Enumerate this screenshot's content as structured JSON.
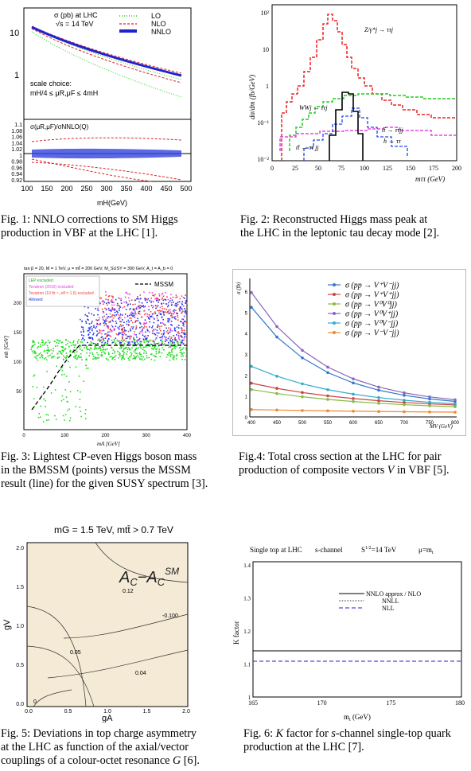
{
  "captions": {
    "fig1": [
      "Fig. 1: NNLO corrections to SM Higgs",
      "production in VBF at the LHC [1]."
    ],
    "fig2": [
      "Fig. 2: Reconstructed Higgs mass peak at",
      "the LHC in the leptonic tau decay mode [2]."
    ],
    "fig3": [
      "Fig. 3: Lightest CP-even Higgs boson mass",
      "in the BMSSM (points) versus the MSSM",
      "result (line) for the given SUSY spectrum [3]."
    ],
    "fig4": [
      "Fig.4: Total cross section at the LHC for pair",
      "production of composite vectors V in VBF [5]."
    ],
    "fig5": [
      "Fig. 5: Deviations in top charge asymmetry",
      "at the LHC as function of the axial/vector",
      "couplings of a colour-octet resonance G [6]."
    ],
    "fig6": [
      "Fig. 6: K factor for s-channel single-top quark",
      "production at the LHC [7]."
    ]
  },
  "fig1": {
    "legend": [
      "σ (pb) at LHC",
      "√s = 14 TeV"
    ],
    "series_names": [
      "LO",
      "NLO",
      "NNLO"
    ],
    "scale_text": [
      "scale choice:",
      "mH/4 ≤ μR,μF ≤ 4mH"
    ],
    "ratio_label": "σ(μR,μF)/σNNLO(Q)",
    "xlabel": "mH(GeV)",
    "xticks": [
      "100",
      "150",
      "200",
      "250",
      "300",
      "350",
      "400",
      "450",
      "500"
    ],
    "yticks_top": [
      "10",
      "1"
    ],
    "yticks_bottom": [
      "1.1",
      "1.08",
      "1.06",
      "1.04",
      "1.02",
      "1",
      "0.98",
      "0.96",
      "0.94",
      "0.92"
    ],
    "colors": {
      "lo": "#22cc22",
      "nlo": "#dd2222",
      "nnlo": "#2222cc"
    }
  },
  "fig2": {
    "ylabel": "dσ/dm (fb/GeV)",
    "xlabel": "mττ (GeV)",
    "xticks": [
      "0",
      "25",
      "50",
      "75",
      "100",
      "125",
      "150",
      "175",
      "200"
    ],
    "yticks": [
      "10²",
      "10",
      "1",
      "10⁻¹",
      "10⁻²"
    ],
    "labels": [
      "Z/γ*j → ττj",
      "WWj → ττj",
      "tt̄ → ττjj",
      "h → ττ",
      "tt̄ → ττ jj"
    ],
    "colors": {
      "z": "#ee2222",
      "ww": "#22cc22",
      "tt": "#2244ee",
      "h": "#000000",
      "m": "#dd22dd"
    }
  },
  "fig3": {
    "header": "tan β = 20, M = 1 TeV, μ = mt̃ = 200 GeV, M_SUSY = 300 GeV, A_t = A_b = 0",
    "legend": [
      "LEP excluded",
      "Tevatron (2010) excluded",
      "Tevatron (10 fb⁻¹, eff = 1.5) excluded",
      "Allowed"
    ],
    "mssm_label": "MSSM",
    "ylabel": "mh [GeV]",
    "xlabel": "mA [GeV]",
    "xticks": [
      "0",
      "100",
      "200",
      "300",
      "400"
    ],
    "yticks": [
      "200",
      "150",
      "100",
      "50"
    ],
    "colors": {
      "lep": "#22dd22",
      "tev10": "#ee44ee",
      "tevproj": "#ee4444",
      "allowed": "#2233ee"
    }
  },
  "fig4": {
    "ylabel": "σ (fb)",
    "xlabel": "MV (GeV)",
    "xticks": [
      "400",
      "450",
      "500",
      "550",
      "600",
      "650",
      "700",
      "750",
      "800"
    ],
    "yticks": [
      "6",
      "5",
      "4",
      "3",
      "2",
      "1",
      "0"
    ],
    "legend": [
      "σ (pp → V⁺V⁻jj)",
      "σ (pp → V⁺V⁺jj)",
      "σ (pp → V⁰V⁰jj)",
      "σ (pp → V⁰V⁺jj)",
      "σ (pp → V⁰V⁻jj)",
      "σ (pp → V⁻V⁻jj)"
    ],
    "colors": [
      "#3377cc",
      "#cc4444",
      "#88bb44",
      "#8866bb",
      "#33aacc",
      "#ee8833"
    ]
  },
  "fig5": {
    "title": "mG = 1.5 TeV, mtt̄ > 0.7 TeV",
    "big_label": "AC−ACSM",
    "contour_labels": [
      "0.12",
      "-0.100",
      "0.05",
      "0.04",
      "0"
    ],
    "xlabel": "gA",
    "ylabel": "gV",
    "xticks": [
      "0.0",
      "0.5",
      "1.0",
      "1.5",
      "2.0"
    ],
    "yticks": [
      "2.0",
      "1.5",
      "1.0",
      "0.5",
      "0.0"
    ],
    "bg": "#f5ead5"
  },
  "fig6": {
    "title": [
      "Single top at LHC",
      "s-channel",
      "S1/2=14 TeV",
      "μ=mt"
    ],
    "legend": [
      "NNLO approx / NLO",
      "NNLL",
      "NLL"
    ],
    "ylabel": "K factor",
    "xlabel": "mt (GeV)",
    "xticks": [
      "165",
      "170",
      "175",
      "180"
    ],
    "yticks": [
      "1.4",
      "1.3",
      "1.2",
      "1.1",
      "1"
    ]
  }
}
